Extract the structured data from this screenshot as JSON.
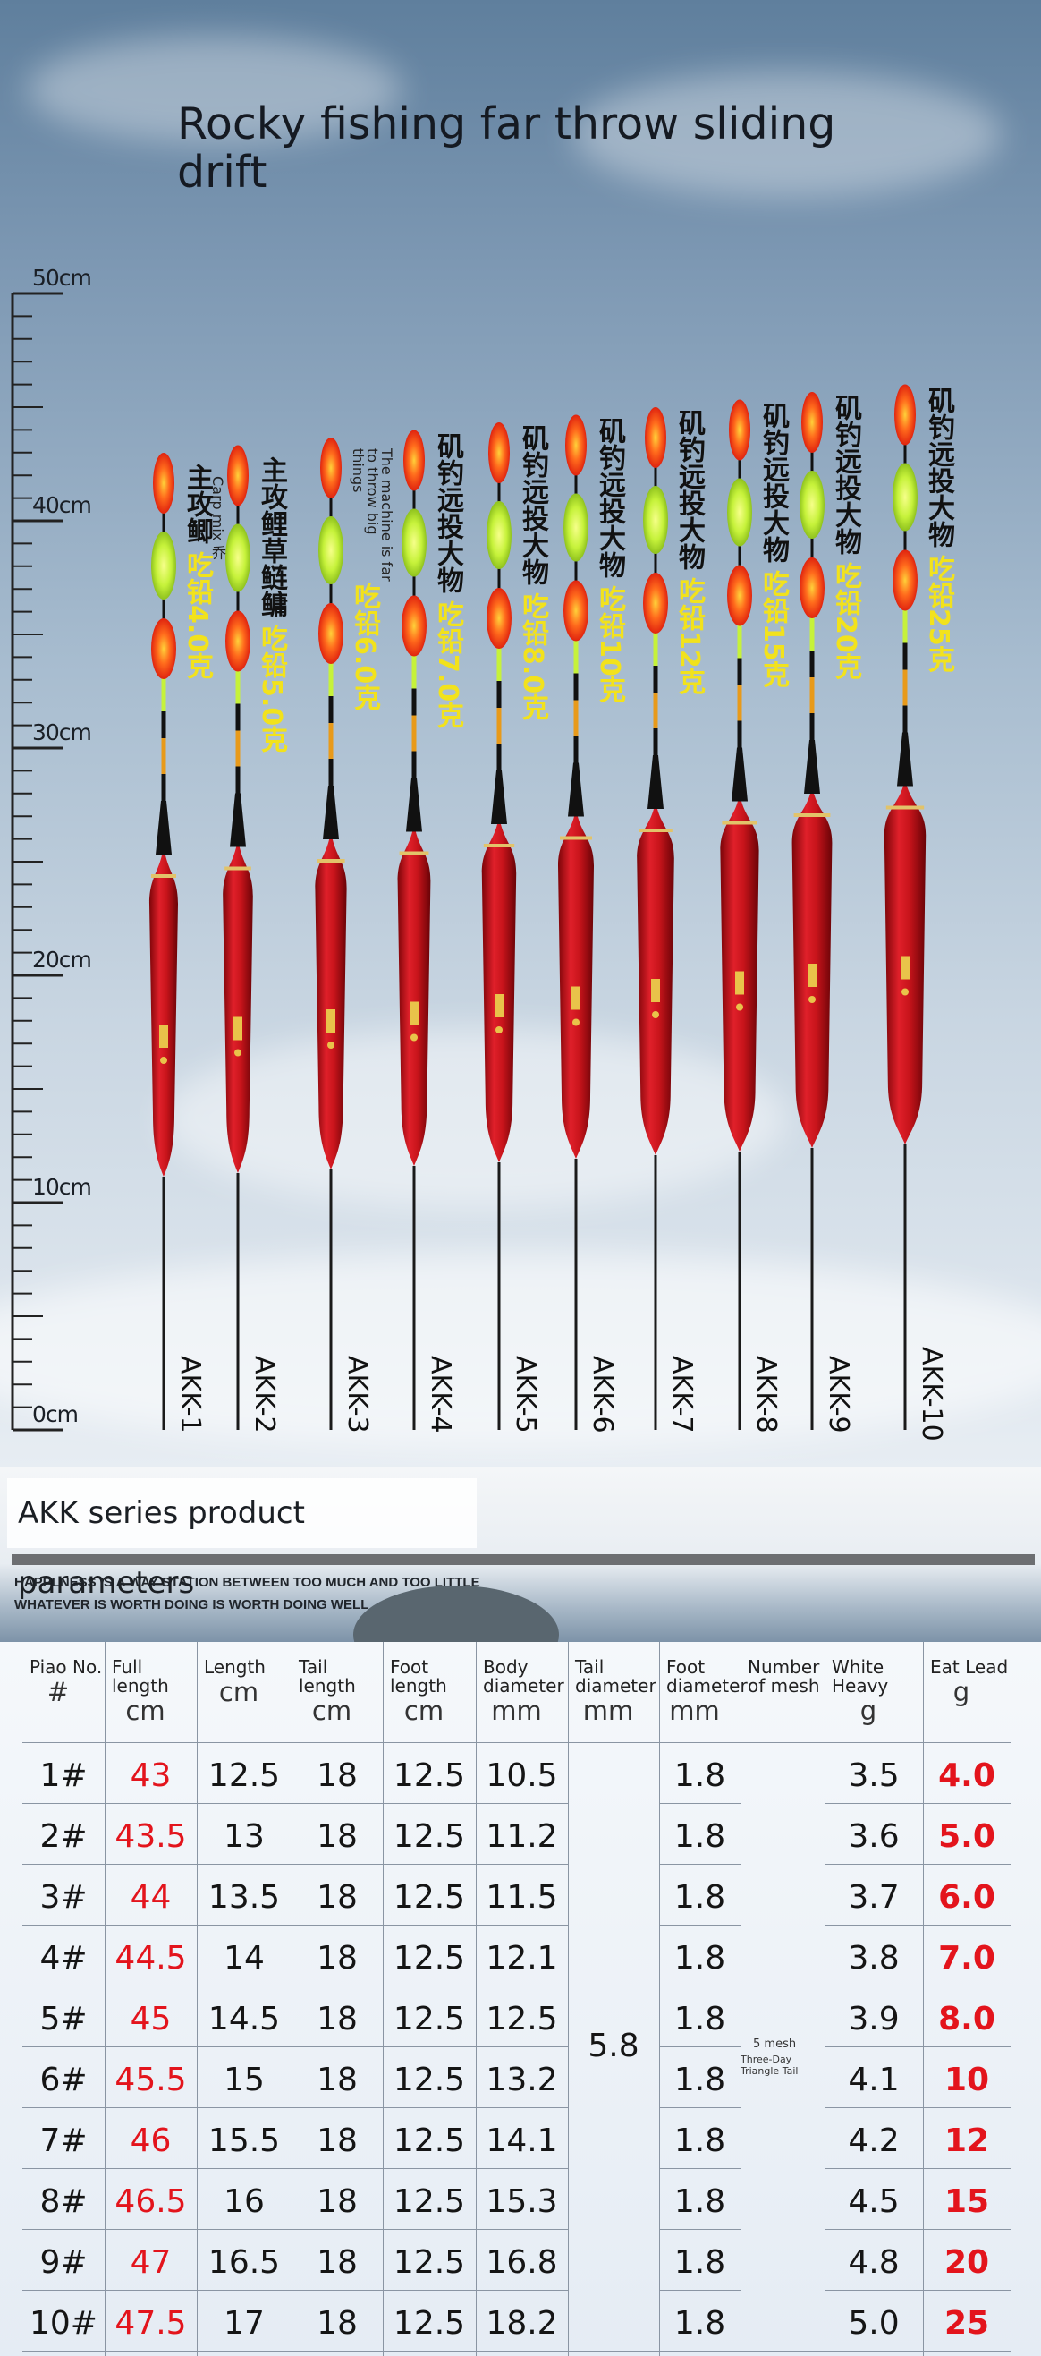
{
  "title": "Rocky fishing far throw sliding drift",
  "ruler": {
    "labels": [
      "50cm",
      "40cm",
      "30cm",
      "20cm",
      "10cm",
      "0cm"
    ]
  },
  "floats": [
    {
      "model": "AKK-1",
      "cn_name": "主攻鲫",
      "en_name": "Carp mix 乔",
      "lead": "吃铅4.0克"
    },
    {
      "model": "AKK-2",
      "cn_name": "主攻鲤草鲢鳙",
      "en_name": "",
      "lead": "吃铅5.0克"
    },
    {
      "model": "AKK-3",
      "cn_name": "",
      "en_name": "The machine is far to throw big things",
      "lead": "吃铅6.0克"
    },
    {
      "model": "AKK-4",
      "cn_name": "矶钓远投大物",
      "en_name": "",
      "lead": "吃铅7.0克"
    },
    {
      "model": "AKK-5",
      "cn_name": "矶钓远投大物",
      "en_name": "",
      "lead": "吃铅8.0克"
    },
    {
      "model": "AKK-6",
      "cn_name": "矶钓远投大物",
      "en_name": "",
      "lead": "吃铅10克"
    },
    {
      "model": "AKK-7",
      "cn_name": "矶钓远投大物",
      "en_name": "",
      "lead": "吃铅12克"
    },
    {
      "model": "AKK-8",
      "cn_name": "矶钓远投大物",
      "en_name": "",
      "lead": "吃铅15克"
    },
    {
      "model": "AKK-9",
      "cn_name": "矶钓远投大物",
      "en_name": "",
      "lead": "吃铅20克"
    },
    {
      "model": "AKK-10",
      "cn_name": "矶钓远投大物",
      "en_name": "",
      "lead": "吃铅25克"
    }
  ],
  "params_title": "AKK series product parameters",
  "motto_1": "HAPPLNESS IS A WAY STATION BETWEEN TOO MUCH AND TOO LITTLE",
  "motto_2": "WHATEVER IS WORTH DOING IS WORTH DOING WELL",
  "table": {
    "headers": [
      {
        "label": "Piao No.",
        "unit": "#"
      },
      {
        "label": "Full length",
        "unit": "cm"
      },
      {
        "label": "Length",
        "unit": "cm"
      },
      {
        "label": "Tail length",
        "unit": "cm"
      },
      {
        "label": "Foot length",
        "unit": "cm"
      },
      {
        "label": "Body diameter",
        "unit": "mm"
      },
      {
        "label": "Tail diameter",
        "unit": "mm"
      },
      {
        "label": "Foot diameter",
        "unit": "mm"
      },
      {
        "label": "Number of mesh",
        "unit": ""
      },
      {
        "label": "White Heavy",
        "unit": "g"
      },
      {
        "label": "Eat Lead",
        "unit": "g"
      }
    ],
    "rows": [
      [
        "1#",
        "43",
        "12.5",
        "18",
        "12.5",
        "10.5",
        "1.8",
        "3.5",
        "4.0"
      ],
      [
        "2#",
        "43.5",
        "13",
        "18",
        "12.5",
        "11.2",
        "1.8",
        "3.6",
        "5.0"
      ],
      [
        "3#",
        "44",
        "13.5",
        "18",
        "12.5",
        "11.5",
        "1.8",
        "3.7",
        "6.0"
      ],
      [
        "4#",
        "44.5",
        "14",
        "18",
        "12.5",
        "12.1",
        "1.8",
        "3.8",
        "7.0"
      ],
      [
        "5#",
        "45",
        "14.5",
        "18",
        "12.5",
        "12.5",
        "1.8",
        "3.9",
        "8.0"
      ],
      [
        "6#",
        "45.5",
        "15",
        "18",
        "12.5",
        "13.2",
        "1.8",
        "4.1",
        "10"
      ],
      [
        "7#",
        "46",
        "15.5",
        "18",
        "12.5",
        "14.1",
        "1.8",
        "4.2",
        "12"
      ],
      [
        "8#",
        "46.5",
        "16",
        "18",
        "12.5",
        "15.3",
        "1.8",
        "4.5",
        "15"
      ],
      [
        "9#",
        "47",
        "16.5",
        "18",
        "12.5",
        "16.8",
        "1.8",
        "4.8",
        "20"
      ],
      [
        "10#",
        "47.5",
        "17",
        "18",
        "12.5",
        "18.2",
        "1.8",
        "5.0",
        "25"
      ]
    ],
    "tail_diameter_merged": "5.8",
    "mesh_note_1": "5 mesh",
    "mesh_note_2": "Three-Day Triangle Tail"
  },
  "colors": {
    "float_body": "#c8141b",
    "tip_red": "#ff5a1c",
    "tip_green": "#c6f23a",
    "lead_text": "#f2e21c",
    "table_red": "#e3141c"
  }
}
